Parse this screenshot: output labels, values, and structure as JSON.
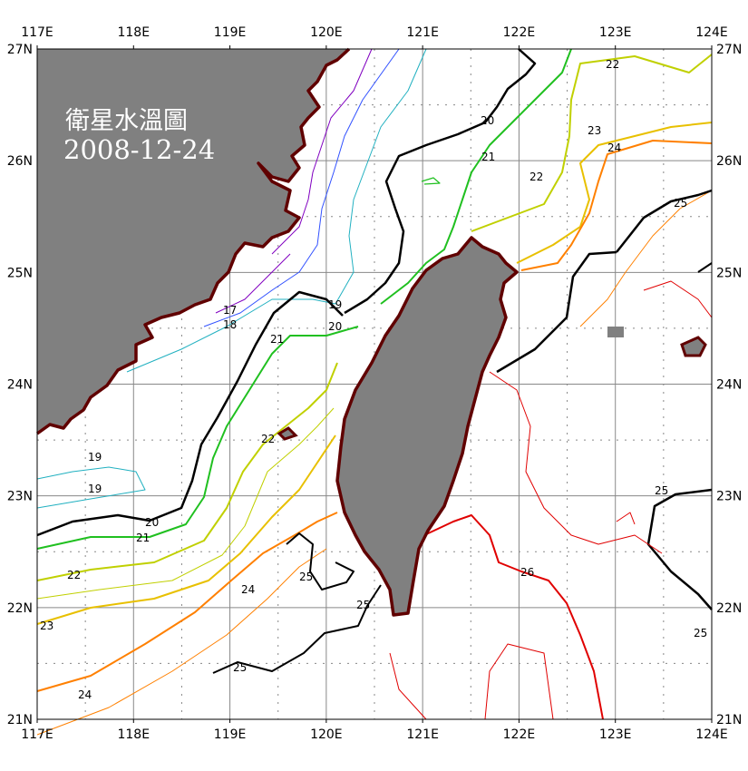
{
  "map": {
    "title_line1": "衛星水溫圖",
    "title_line2": "2008-12-24",
    "extent": {
      "lon": [
        117,
        124
      ],
      "lat": [
        21,
        27
      ]
    },
    "lon_labels": [
      "117E",
      "118E",
      "119E",
      "120E",
      "121E",
      "122E",
      "123E",
      "124E"
    ],
    "lat_labels": [
      "27N",
      "26N",
      "25N",
      "24N",
      "23N",
      "22N",
      "21N"
    ],
    "land_color": "#808080",
    "coast_color": "#600000",
    "grid": "solid at integer degrees, dotted at half degrees",
    "contour_levels": [
      17,
      18,
      19,
      20,
      21,
      22,
      23,
      24,
      25,
      26
    ],
    "contour_colors": {
      "17": "#8000c0",
      "18": "#3050ff",
      "19": "#20b0c0",
      "20": "#000000",
      "21": "#20c020",
      "22": "#c0d000",
      "23": "#e8c000",
      "24": "#ff8000",
      "25": "#000000",
      "26": "#e00000"
    },
    "contour_labels": [
      "22",
      "20",
      "23",
      "24",
      "21",
      "22",
      "25",
      "19",
      "20",
      "17",
      "18",
      "21",
      "22",
      "19",
      "19",
      "20",
      "21",
      "22",
      "23",
      "24",
      "25",
      "25",
      "25",
      "26",
      "25",
      "25",
      "24"
    ]
  }
}
